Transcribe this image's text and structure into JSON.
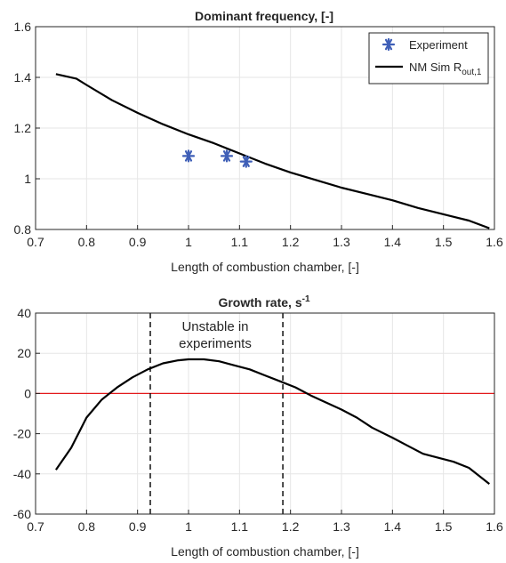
{
  "chart_data": [
    {
      "type": "scatter",
      "title": "Dominant frequency, [-]",
      "xlabel": "Length of combustion chamber, [-]",
      "ylabel": "",
      "xlim": [
        0.7,
        1.6
      ],
      "ylim": [
        0.8,
        1.6
      ],
      "xticks": [
        "0.7",
        "0.8",
        "0.9",
        "1",
        "1.1",
        "1.2",
        "1.3",
        "1.4",
        "1.5",
        "1.6"
      ],
      "yticks": [
        "0.8",
        "1",
        "1.2",
        "1.4",
        "1.6"
      ],
      "grid": true,
      "legend_position": "top-right",
      "series": [
        {
          "name": "Experiment",
          "kind": "markers",
          "marker": "asterisk",
          "color": "#3F5FB7",
          "x": [
            1.0,
            1.075,
            1.113
          ],
          "y": [
            1.09,
            1.09,
            1.068
          ]
        },
        {
          "name_base": "NM Sim R",
          "name_sub": "out,1",
          "kind": "line",
          "color": "#000000",
          "x": [
            0.74,
            0.78,
            0.8,
            0.85,
            0.9,
            0.95,
            1.0,
            1.05,
            1.1,
            1.15,
            1.2,
            1.25,
            1.3,
            1.35,
            1.4,
            1.45,
            1.5,
            1.55,
            1.59
          ],
          "y": [
            1.413,
            1.395,
            1.37,
            1.31,
            1.26,
            1.215,
            1.175,
            1.14,
            1.1,
            1.06,
            1.025,
            0.995,
            0.965,
            0.94,
            0.915,
            0.885,
            0.86,
            0.835,
            0.805
          ]
        }
      ]
    },
    {
      "type": "line",
      "title_base": "Growth rate, s",
      "title_sup": "-1",
      "xlabel": "Length of combustion chamber, [-]",
      "ylabel": "",
      "xlim": [
        0.7,
        1.6
      ],
      "ylim": [
        -60,
        40
      ],
      "xticks": [
        "0.7",
        "0.8",
        "0.9",
        "1",
        "1.1",
        "1.2",
        "1.3",
        "1.4",
        "1.5",
        "1.6"
      ],
      "yticks": [
        "-60",
        "-40",
        "-20",
        "0",
        "20",
        "40"
      ],
      "grid": true,
      "series": [
        {
          "kind": "line",
          "color": "#000000",
          "x": [
            0.74,
            0.77,
            0.8,
            0.83,
            0.86,
            0.89,
            0.92,
            0.95,
            0.98,
            1.0,
            1.03,
            1.06,
            1.09,
            1.12,
            1.15,
            1.18,
            1.21,
            1.24,
            1.27,
            1.3,
            1.33,
            1.36,
            1.4,
            1.43,
            1.46,
            1.49,
            1.52,
            1.55,
            1.59
          ],
          "y": [
            -38,
            -27,
            -12,
            -3,
            3,
            8,
            12,
            15,
            16.5,
            17,
            17,
            16,
            14,
            12,
            9,
            6,
            3,
            -1,
            -4.5,
            -8,
            -12,
            -17,
            -22,
            -26,
            -30,
            -32,
            -34,
            -37,
            -45
          ]
        }
      ],
      "reference_line": {
        "y": 0,
        "color": "#E31A1C"
      },
      "vertical_lines": [
        0.925,
        1.185
      ],
      "annotation": {
        "lines": [
          "Unstable in",
          "experiments"
        ]
      }
    }
  ],
  "colors": {
    "axis": "#262626",
    "grid": "#E6E6E6",
    "marker": "#3F5FB7"
  }
}
